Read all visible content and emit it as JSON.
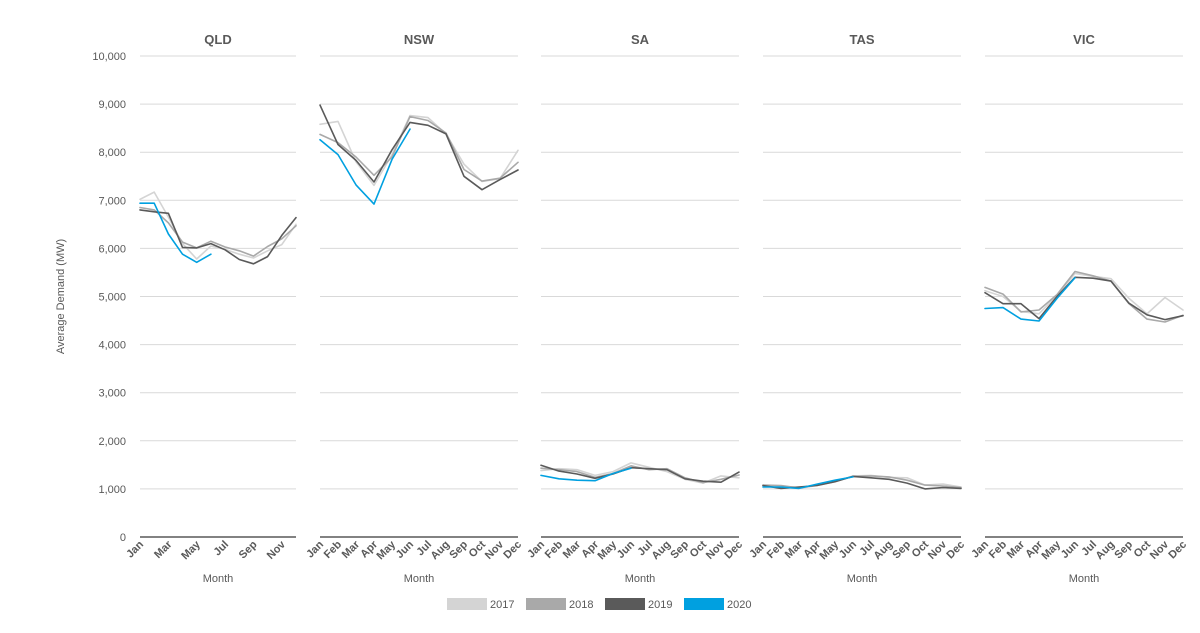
{
  "chart_data": {
    "type": "line",
    "ylabel": "Average Demand (MW)",
    "xlabel": "Month",
    "ylim": [
      0,
      10000
    ],
    "yticks": [
      0,
      1000,
      2000,
      3000,
      4000,
      5000,
      6000,
      7000,
      8000,
      9000,
      10000
    ],
    "ytick_labels": [
      "0",
      "1,000",
      "2,000",
      "3,000",
      "4,000",
      "5,000",
      "6,000",
      "7,000",
      "8,000",
      "9,000",
      "10,000"
    ],
    "grid": true,
    "legend_position": "bottom",
    "series_styles": [
      {
        "name": "2017",
        "color": "#d4d4d4"
      },
      {
        "name": "2018",
        "color": "#a9a9a9"
      },
      {
        "name": "2019",
        "color": "#5a5a5a"
      },
      {
        "name": "2020",
        "color": "#00a0e0"
      }
    ],
    "panels": [
      {
        "title": "QLD",
        "tick_labels": [
          "Jan",
          "",
          "Mar",
          "",
          "May",
          "",
          "Jul",
          "",
          "Sep",
          "",
          "Nov",
          ""
        ],
        "series": [
          {
            "name": "2017",
            "values": [
              7020,
              7170,
              6650,
              6100,
              5780,
              6050,
              5980,
              5880,
              5800,
              5950,
              6080,
              6500
            ]
          },
          {
            "name": "2018",
            "values": [
              6850,
              6800,
              6530,
              6130,
              6010,
              6150,
              6030,
              5950,
              5840,
              6040,
              6200,
              6470
            ]
          },
          {
            "name": "2019",
            "values": [
              6800,
              6760,
              6730,
              6020,
              6010,
              6100,
              5970,
              5770,
              5680,
              5830,
              6270,
              6640
            ]
          },
          {
            "name": "2020",
            "values": [
              6940,
              6940,
              6300,
              5880,
              5710,
              5880
            ]
          }
        ]
      },
      {
        "title": "NSW",
        "tick_labels": [
          "Jan",
          "Feb",
          "Mar",
          "Apr",
          "May",
          "Jun",
          "Jul",
          "Aug",
          "Sep",
          "Oct",
          "Nov",
          "Dec"
        ],
        "series": [
          {
            "name": "2017",
            "values": [
              8580,
              8640,
              7800,
              7310,
              7950,
              8760,
              8720,
              8380,
              7750,
              7390,
              7450,
              8040
            ]
          },
          {
            "name": "2018",
            "values": [
              8370,
              8200,
              7900,
              7520,
              7900,
              8740,
              8660,
              8400,
              7640,
              7400,
              7460,
              7790
            ]
          },
          {
            "name": "2019",
            "values": [
              8980,
              8160,
              7830,
              7380,
              8050,
              8620,
              8560,
              8380,
              7500,
              7220,
              7430,
              7630
            ]
          },
          {
            "name": "2020",
            "values": [
              8260,
              7950,
              7320,
              6920,
              7850,
              8480
            ]
          }
        ]
      },
      {
        "title": "SA",
        "tick_labels": [
          "Jan",
          "Feb",
          "Mar",
          "Apr",
          "May",
          "Jun",
          "Jul",
          "Aug",
          "Sep",
          "Oct",
          "Nov",
          "Dec"
        ],
        "series": [
          {
            "name": "2017",
            "values": [
              1380,
              1420,
              1400,
              1280,
              1360,
              1540,
              1450,
              1360,
              1200,
              1120,
              1270,
              1230
            ]
          },
          {
            "name": "2018",
            "values": [
              1430,
              1400,
              1360,
              1240,
              1320,
              1480,
              1400,
              1420,
              1230,
              1130,
              1200,
              1290
            ]
          },
          {
            "name": "2019",
            "values": [
              1490,
              1370,
              1310,
              1220,
              1310,
              1440,
              1420,
              1400,
              1210,
              1160,
              1140,
              1350
            ]
          },
          {
            "name": "2020",
            "values": [
              1280,
              1210,
              1180,
              1170,
              1320,
              1430
            ]
          }
        ]
      },
      {
        "title": "TAS",
        "tick_labels": [
          "Jan",
          "Feb",
          "Mar",
          "Apr",
          "May",
          "Jun",
          "Jul",
          "Aug",
          "Sep",
          "Oct",
          "Nov",
          "Dec"
        ],
        "series": [
          {
            "name": "2017",
            "values": [
              1060,
              1040,
              1010,
              1070,
              1150,
              1270,
              1280,
              1240,
              1230,
              1080,
              1100,
              1040
            ]
          },
          {
            "name": "2018",
            "values": [
              1080,
              1070,
              1020,
              1080,
              1160,
              1260,
              1270,
              1250,
              1180,
              1080,
              1060,
              1030
            ]
          },
          {
            "name": "2019",
            "values": [
              1070,
              1010,
              1040,
              1070,
              1150,
              1260,
              1230,
              1200,
              1120,
              1000,
              1030,
              1010
            ]
          },
          {
            "name": "2020",
            "values": [
              1040,
              1040,
              1010,
              1100,
              1180,
              1250
            ]
          }
        ]
      },
      {
        "title": "VIC",
        "tick_labels": [
          "Jan",
          "Feb",
          "Mar",
          "Apr",
          "May",
          "Jun",
          "Jul",
          "Aug",
          "Sep",
          "Oct",
          "Nov",
          "Dec"
        ],
        "series": [
          {
            "name": "2017",
            "values": [
              5120,
              5000,
              4690,
              4640,
              5020,
              5480,
              5420,
              5370,
              4960,
              4640,
              4980,
              4720
            ]
          },
          {
            "name": "2018",
            "values": [
              5190,
              5050,
              4680,
              4720,
              5040,
              5520,
              5430,
              5320,
              4850,
              4530,
              4470,
              4610
            ]
          },
          {
            "name": "2019",
            "values": [
              5080,
              4850,
              4850,
              4540,
              5000,
              5400,
              5380,
              5320,
              4860,
              4620,
              4520,
              4600
            ]
          },
          {
            "name": "2020",
            "values": [
              4750,
              4770,
              4530,
              4490,
              4960,
              5390
            ]
          }
        ]
      }
    ]
  }
}
